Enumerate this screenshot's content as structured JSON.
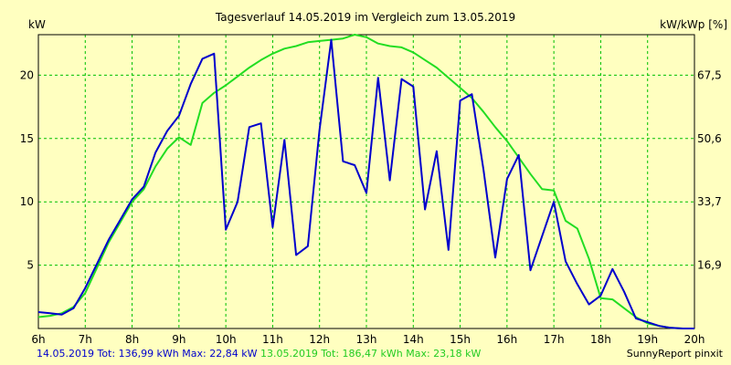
{
  "chart_data": {
    "type": "line",
    "title": "Tagesverlauf 14.05.2019 im Vergleich zum 13.05.2019",
    "ylabel_left": "kW",
    "ylabel_right": "kW/kWp [%]",
    "x_ticks": [
      "6h",
      "7h",
      "8h",
      "9h",
      "10h",
      "11h",
      "12h",
      "13h",
      "14h",
      "15h",
      "16h",
      "17h",
      "18h",
      "19h",
      "20h"
    ],
    "y_ticks_left": [
      "5",
      "10",
      "15",
      "20"
    ],
    "y_ticks_right": [
      "16,9",
      "33,7",
      "50,6",
      "67,5"
    ],
    "xlim": [
      6,
      20
    ],
    "ylim": [
      0,
      23.2
    ],
    "grid": true,
    "colors": {
      "background": "#ffffc0",
      "grid": "#00c000",
      "axis": "#000000",
      "series1": "#0000cc",
      "series2": "#22dd22"
    },
    "series": [
      {
        "name": "14.05.2019",
        "x": [
          6.0,
          6.25,
          6.5,
          6.75,
          7.0,
          7.25,
          7.5,
          7.75,
          8.0,
          8.25,
          8.5,
          8.75,
          9.0,
          9.25,
          9.5,
          9.75,
          10.0,
          10.25,
          10.5,
          10.75,
          11.0,
          11.25,
          11.5,
          11.75,
          12.0,
          12.25,
          12.5,
          12.75,
          13.0,
          13.25,
          13.5,
          13.75,
          14.0,
          14.25,
          14.5,
          14.75,
          15.0,
          15.25,
          15.5,
          15.75,
          16.0,
          16.25,
          16.5,
          16.75,
          17.0,
          17.25,
          17.5,
          17.75,
          18.0,
          18.25,
          18.5,
          18.75,
          19.0,
          19.25,
          19.5,
          19.75,
          20.0
        ],
        "values": [
          1.3,
          1.2,
          1.1,
          1.6,
          3.2,
          5.1,
          7.0,
          8.6,
          10.2,
          11.2,
          13.9,
          15.6,
          16.8,
          19.3,
          21.3,
          21.7,
          7.8,
          10.0,
          15.9,
          16.2,
          8.0,
          14.9,
          5.8,
          6.5,
          15.7,
          22.8,
          13.2,
          12.9,
          10.7,
          19.8,
          11.7,
          19.7,
          19.1,
          9.4,
          14.0,
          6.2,
          18.0,
          18.5,
          12.5,
          5.6,
          11.8,
          13.7,
          4.6,
          7.3,
          10.0,
          5.3,
          3.5,
          1.9,
          2.6,
          4.7,
          2.9,
          0.8,
          0.5,
          0.2,
          0.05,
          0.0,
          0.0
        ]
      },
      {
        "name": "13.05.2019",
        "x": [
          6.0,
          6.25,
          6.5,
          6.75,
          7.0,
          7.25,
          7.5,
          7.75,
          8.0,
          8.25,
          8.5,
          8.75,
          9.0,
          9.25,
          9.5,
          9.75,
          10.0,
          10.25,
          10.5,
          10.75,
          11.0,
          11.25,
          11.5,
          11.75,
          12.0,
          12.25,
          12.5,
          12.75,
          13.0,
          13.25,
          13.5,
          13.75,
          14.0,
          14.25,
          14.5,
          14.75,
          15.0,
          15.25,
          15.5,
          15.75,
          16.0,
          16.25,
          16.5,
          16.75,
          17.0,
          17.25,
          17.5,
          17.75,
          18.0,
          18.25,
          18.5,
          18.75,
          19.0,
          19.25,
          19.5,
          19.75,
          20.0
        ],
        "values": [
          0.9,
          1.0,
          1.2,
          1.7,
          2.8,
          4.8,
          6.8,
          8.4,
          10.0,
          11.0,
          12.8,
          14.2,
          15.1,
          14.5,
          17.8,
          18.6,
          19.2,
          19.9,
          20.6,
          21.2,
          21.7,
          22.1,
          22.3,
          22.6,
          22.7,
          22.8,
          22.9,
          23.2,
          23.0,
          22.5,
          22.3,
          22.2,
          21.8,
          21.2,
          20.6,
          19.8,
          19.0,
          18.2,
          17.1,
          15.9,
          14.8,
          13.5,
          12.2,
          11.0,
          10.9,
          8.5,
          7.9,
          5.5,
          2.4,
          2.3,
          1.6,
          0.9,
          0.4,
          0.2,
          0.05,
          0.0,
          0.0
        ]
      }
    ]
  },
  "footer": {
    "series1_label": "14.05.2019 Tot: 136,99 kWh Max: 22,84 kW",
    "series2_label": "13.05.2019 Tot: 186,47 kWh Max: 23,18 kW",
    "brand": "SunnyReport pinxit"
  }
}
